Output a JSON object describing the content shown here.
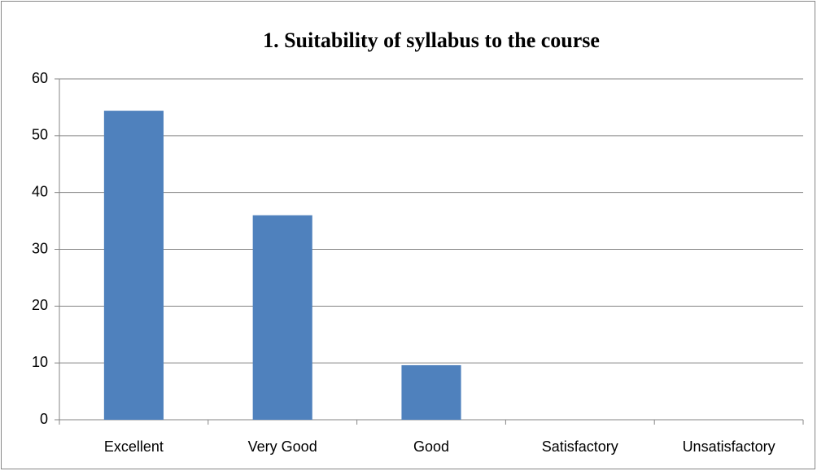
{
  "chart_data": {
    "type": "bar",
    "title": "1. Suitability of syllabus to the course",
    "categories": [
      "Excellent",
      "Very Good",
      "Good",
      "Satisfactory",
      "Unsatisfactory"
    ],
    "values": [
      54.4,
      36,
      9.6,
      0,
      0
    ],
    "color": "#4f81bd",
    "ylim": [
      0,
      60
    ],
    "yticks": [
      0,
      10,
      20,
      30,
      40,
      50,
      60
    ],
    "grid": true
  }
}
